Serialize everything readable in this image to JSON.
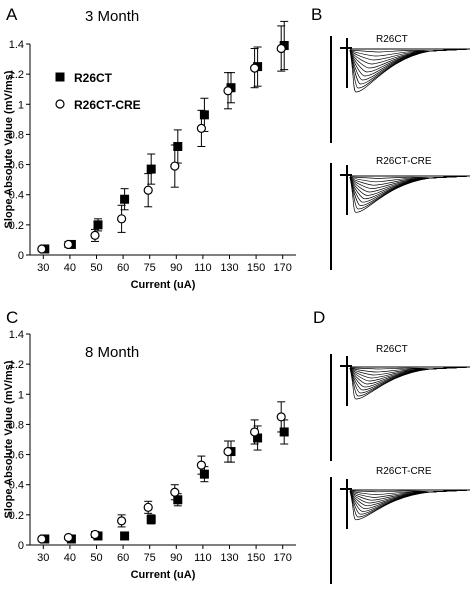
{
  "panels": {
    "A": {
      "letter": "A",
      "title": "3 Month"
    },
    "B": {
      "letter": "B",
      "trace_labels": [
        "R26CT",
        "R26CT-CRE"
      ]
    },
    "C": {
      "letter": "C",
      "title": "8 Month"
    },
    "D": {
      "letter": "D",
      "trace_labels": [
        "R26CT",
        "R26CT-CRE"
      ]
    }
  },
  "chart_data": [
    {
      "panel": "A",
      "type": "scatter",
      "title": "3 Month",
      "xlabel": "Current (uA)",
      "ylabel": "Slope Absolute Value (mV/ms)",
      "categories": [
        "30",
        "40",
        "50",
        "60",
        "75",
        "90",
        "110",
        "130",
        "150",
        "170"
      ],
      "ylim": [
        0,
        1.4
      ],
      "yticks": [
        "0",
        "0.2",
        "0.4",
        "0.6",
        "0.8",
        "1",
        "1.2",
        "1.4"
      ],
      "legend_position": "top-left",
      "series": [
        {
          "name": "R26CT",
          "marker": "filled-square",
          "values": [
            0.04,
            0.07,
            0.2,
            0.37,
            0.57,
            0.72,
            0.93,
            1.11,
            1.25,
            1.39
          ],
          "errors": [
            0.02,
            0.02,
            0.04,
            0.07,
            0.1,
            0.11,
            0.11,
            0.1,
            0.13,
            0.16
          ]
        },
        {
          "name": "R26CT-CRE",
          "marker": "open-circle",
          "values": [
            0.04,
            0.07,
            0.13,
            0.24,
            0.43,
            0.59,
            0.84,
            1.09,
            1.24,
            1.37
          ],
          "errors": [
            0.01,
            0.02,
            0.04,
            0.09,
            0.11,
            0.14,
            0.12,
            0.12,
            0.13,
            0.15
          ]
        }
      ]
    },
    {
      "panel": "C",
      "type": "scatter",
      "title": "8 Month",
      "xlabel": "Current (uA)",
      "ylabel": "Slope Absolute Value (mV/ms)",
      "categories": [
        "30",
        "40",
        "50",
        "60",
        "75",
        "90",
        "110",
        "130",
        "150",
        "170"
      ],
      "ylim": [
        0,
        1.4
      ],
      "yticks": [
        "0",
        "0.2",
        "0.4",
        "0.6",
        "0.8",
        "1",
        "1.2",
        "1.4"
      ],
      "series": [
        {
          "name": "R26CT",
          "marker": "filled-square",
          "values": [
            0.04,
            0.04,
            0.06,
            0.06,
            0.17,
            0.3,
            0.47,
            0.62,
            0.71,
            0.75
          ],
          "errors": [
            0.01,
            0.01,
            0.02,
            0.02,
            0.03,
            0.04,
            0.05,
            0.07,
            0.08,
            0.08
          ]
        },
        {
          "name": "R26CT-CRE",
          "marker": "open-circle",
          "values": [
            0.04,
            0.05,
            0.07,
            0.16,
            0.25,
            0.35,
            0.53,
            0.62,
            0.75,
            0.85
          ],
          "errors": [
            0.01,
            0.01,
            0.02,
            0.04,
            0.04,
            0.05,
            0.06,
            0.07,
            0.08,
            0.1
          ]
        }
      ]
    }
  ]
}
